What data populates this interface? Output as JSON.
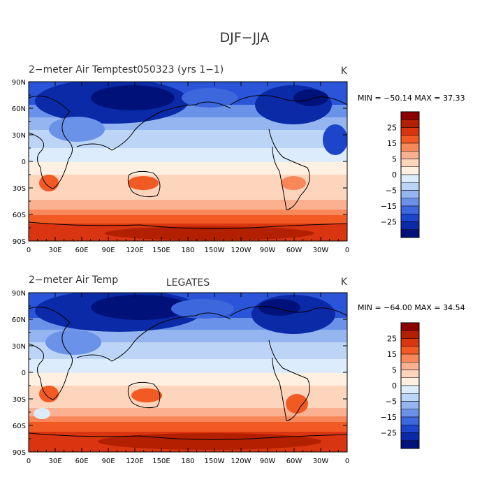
{
  "figure": {
    "main_title": "DJF−JJA"
  },
  "panels": [
    {
      "title": "2−meter Air Temptest050323 (yrs 1−1)",
      "subtitle": "",
      "units": "K",
      "stats": "MIN = −50.14 MAX =  37.33"
    },
    {
      "title": "2−meter Air Temp",
      "subtitle": "LEGATES",
      "units": "K",
      "stats": "MIN = −64.00 MAX =  34.54"
    }
  ],
  "axes": {
    "lat_labels": [
      "90N",
      "60N",
      "30N",
      "0",
      "30S",
      "60S",
      "90S"
    ],
    "lon_labels": [
      "0",
      "30E",
      "60E",
      "90E",
      "120E",
      "150E",
      "180",
      "150W",
      "120W",
      "90W",
      "60W",
      "30W",
      "0"
    ]
  },
  "colorbar": {
    "labels": [
      "25",
      "15",
      "5",
      "0",
      "−5",
      "−15",
      "−25"
    ],
    "colors": [
      "#8b0000",
      "#b22000",
      "#d83510",
      "#f25a24",
      "#f8875a",
      "#fbb090",
      "#fdd5bd",
      "#fff0e2",
      "#dcecfc",
      "#bcd5f7",
      "#95b5f0",
      "#6a92e8",
      "#3d68dd",
      "#1c45cc",
      "#0a2aa8",
      "#00127a"
    ]
  },
  "colors": {
    "map_background": "#fbcbb0",
    "coastline": "#000000"
  }
}
